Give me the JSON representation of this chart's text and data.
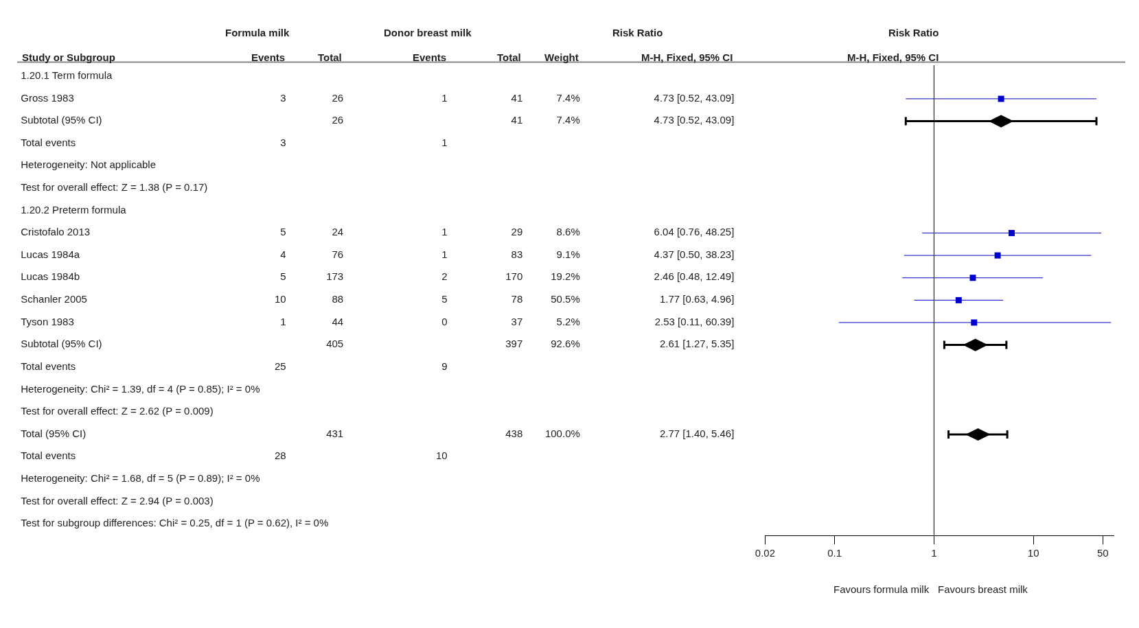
{
  "chart_data": [
    {
      "type": "heatmap",
      "ylabel": "Study or Subgroup",
      "categories": [
        "Events",
        "Total",
        "Events",
        "Total",
        "Weight",
        "M-H, Fixed, 95% CI"
      ],
      "y_categories": [
        "1.20.1 Term formula",
        "Gross 1983",
        "Subtotal (95% CI)",
        "Total events",
        "Heterogeneity: Not applicable",
        "Test for overall effect: Z = 1.38 (P = 0.17)",
        "1.20.2 Preterm formula",
        "Cristofalo 2013",
        "Lucas 1984a",
        "Lucas 1984b",
        "Schanler 2005",
        "Tyson 1983",
        "Subtotal (95% CI)",
        "Total events",
        "Heterogeneity: Chi² = 1.39, df = 4 (P = 0.85); I² = 0%",
        "Test for overall effect: Z = 2.62 (P = 0.009)",
        "Total (95% CI)",
        "Total events",
        "Heterogeneity: Chi² = 1.68, df = 5 (P = 0.89); I² = 0%",
        "Test for overall effect: Z = 2.94 (P = 0.003)",
        "Test for subgroup differences: Chi² = 0.25, df = 1 (P = 0.62), I² = 0%"
      ],
      "cells": [
        [
          null,
          null,
          null,
          null,
          null,
          null
        ],
        [
          null,
          null,
          null,
          null,
          null,
          null
        ],
        [
          null,
          null,
          null,
          null,
          null,
          null
        ],
        [
          null,
          null,
          null,
          null,
          null,
          null
        ],
        [
          null,
          null,
          null,
          null,
          null,
          null
        ],
        [
          null,
          null,
          null,
          null,
          null,
          null
        ],
        [
          null,
          null,
          null,
          null,
          null,
          null
        ],
        [
          null,
          null,
          null,
          null,
          null,
          null
        ],
        [
          null,
          null,
          null,
          null,
          null,
          null
        ],
        [
          null,
          null,
          null,
          null,
          null,
          null
        ],
        [
          null,
          null,
          null,
          null,
          null,
          null
        ],
        [
          null,
          null,
          null,
          null,
          null,
          null
        ],
        [
          null,
          null,
          null,
          null,
          null,
          null
        ],
        [
          null,
          null,
          null,
          null,
          null,
          null
        ],
        [
          null,
          null,
          null,
          null,
          null,
          null
        ],
        [
          null,
          null,
          null,
          null,
          null,
          null
        ],
        [
          null,
          null,
          null,
          null,
          null,
          null
        ],
        [
          null,
          null,
          null,
          null,
          null,
          null
        ],
        [
          null,
          null,
          null,
          null,
          null,
          null
        ],
        [
          null,
          null,
          null,
          null,
          null,
          null
        ],
        [
          null,
          null,
          null,
          null,
          null,
          null
        ]
      ],
      "cell_labels": [
        [
          null,
          null,
          null,
          null,
          null,
          null
        ],
        [
          "3",
          "26",
          "1",
          "41",
          "7.4%",
          "4.73 [0.52, 43.09]"
        ],
        [
          null,
          "26",
          null,
          "41",
          "7.4%",
          "4.73 [0.52, 43.09]"
        ],
        [
          "3",
          null,
          "1",
          null,
          null,
          null
        ],
        [
          null,
          null,
          null,
          null,
          null,
          null
        ],
        [
          null,
          null,
          null,
          null,
          null,
          null
        ],
        [
          null,
          null,
          null,
          null,
          null,
          null
        ],
        [
          "5",
          "24",
          "1",
          "29",
          "8.6%",
          "6.04 [0.76, 48.25]"
        ],
        [
          "4",
          "76",
          "1",
          "83",
          "9.1%",
          "4.37 [0.50, 38.23]"
        ],
        [
          "5",
          "173",
          "2",
          "170",
          "19.2%",
          "2.46 [0.48, 12.49]"
        ],
        [
          "10",
          "88",
          "5",
          "78",
          "50.5%",
          "1.77 [0.63, 4.96]"
        ],
        [
          "1",
          "44",
          "0",
          "37",
          "5.2%",
          "2.53 [0.11, 60.39]"
        ],
        [
          null,
          "405",
          null,
          "397",
          "92.6%",
          "2.61 [1.27, 5.35]"
        ],
        [
          "25",
          null,
          "9",
          null,
          null,
          null
        ],
        [
          null,
          null,
          null,
          null,
          null,
          null
        ],
        [
          null,
          null,
          null,
          null,
          null,
          null
        ],
        [
          null,
          "431",
          null,
          "438",
          "100.0%",
          "2.77 [1.40, 5.46]"
        ],
        [
          "28",
          null,
          "10",
          null,
          null,
          null
        ],
        [
          null,
          null,
          null,
          null,
          null,
          null
        ],
        [
          null,
          null,
          null,
          null,
          null,
          null
        ],
        [
          null,
          null,
          null,
          null,
          null,
          null
        ]
      ],
      "annotations": [
        "Formula milk",
        "Donor breast milk",
        "Risk Ratio"
      ]
    },
    {
      "type": "scatter",
      "title": "Risk Ratio",
      "subtitle": "M-H, Fixed, 95% CI",
      "orientation": "horizontal",
      "log": "x",
      "tick_labels": "x",
      "categories": [
        null,
        null,
        null,
        null,
        null,
        null,
        null,
        null,
        null,
        null,
        null,
        null,
        null,
        null,
        null,
        null,
        null,
        null,
        null,
        null,
        null
      ],
      "xlim": [
        0.02,
        65
      ],
      "xticks": [
        0.02,
        0.1,
        1,
        10,
        50
      ],
      "series": [
        {
          "marker": "square",
          "color": "#0000cc",
          "values": [
            null,
            4.73,
            null,
            null,
            null,
            null,
            null,
            6.04,
            4.37,
            2.46,
            1.77,
            2.53,
            null,
            null,
            null,
            null,
            null,
            null,
            null,
            null,
            null
          ],
          "errors": [
            null,
            [
              0.52,
              43.09
            ],
            null,
            null,
            null,
            null,
            null,
            [
              0.76,
              48.25
            ],
            [
              0.5,
              38.23
            ],
            [
              0.48,
              12.49
            ],
            [
              0.63,
              4.96
            ],
            [
              0.11,
              60.39
            ],
            null,
            null,
            null,
            null,
            null,
            null,
            null,
            null,
            null
          ]
        },
        {
          "marker": "diamond",
          "color": "#000000",
          "values": [
            null,
            null,
            4.73,
            null,
            null,
            null,
            null,
            null,
            null,
            null,
            null,
            null,
            2.61,
            null,
            null,
            null,
            2.77,
            null,
            null,
            null,
            null
          ],
          "errors": [
            null,
            null,
            [
              0.52,
              43.09
            ],
            null,
            null,
            null,
            null,
            null,
            null,
            null,
            null,
            null,
            [
              1.27,
              5.35
            ],
            null,
            null,
            null,
            [
              1.4,
              5.46
            ],
            null,
            null,
            null,
            null
          ]
        }
      ],
      "ref_lines": [
        {
          "axis": "x",
          "value": 1,
          "color": "#000000"
        }
      ],
      "annotations": [
        "Favours formula milk",
        "Favours breast milk"
      ]
    }
  ]
}
